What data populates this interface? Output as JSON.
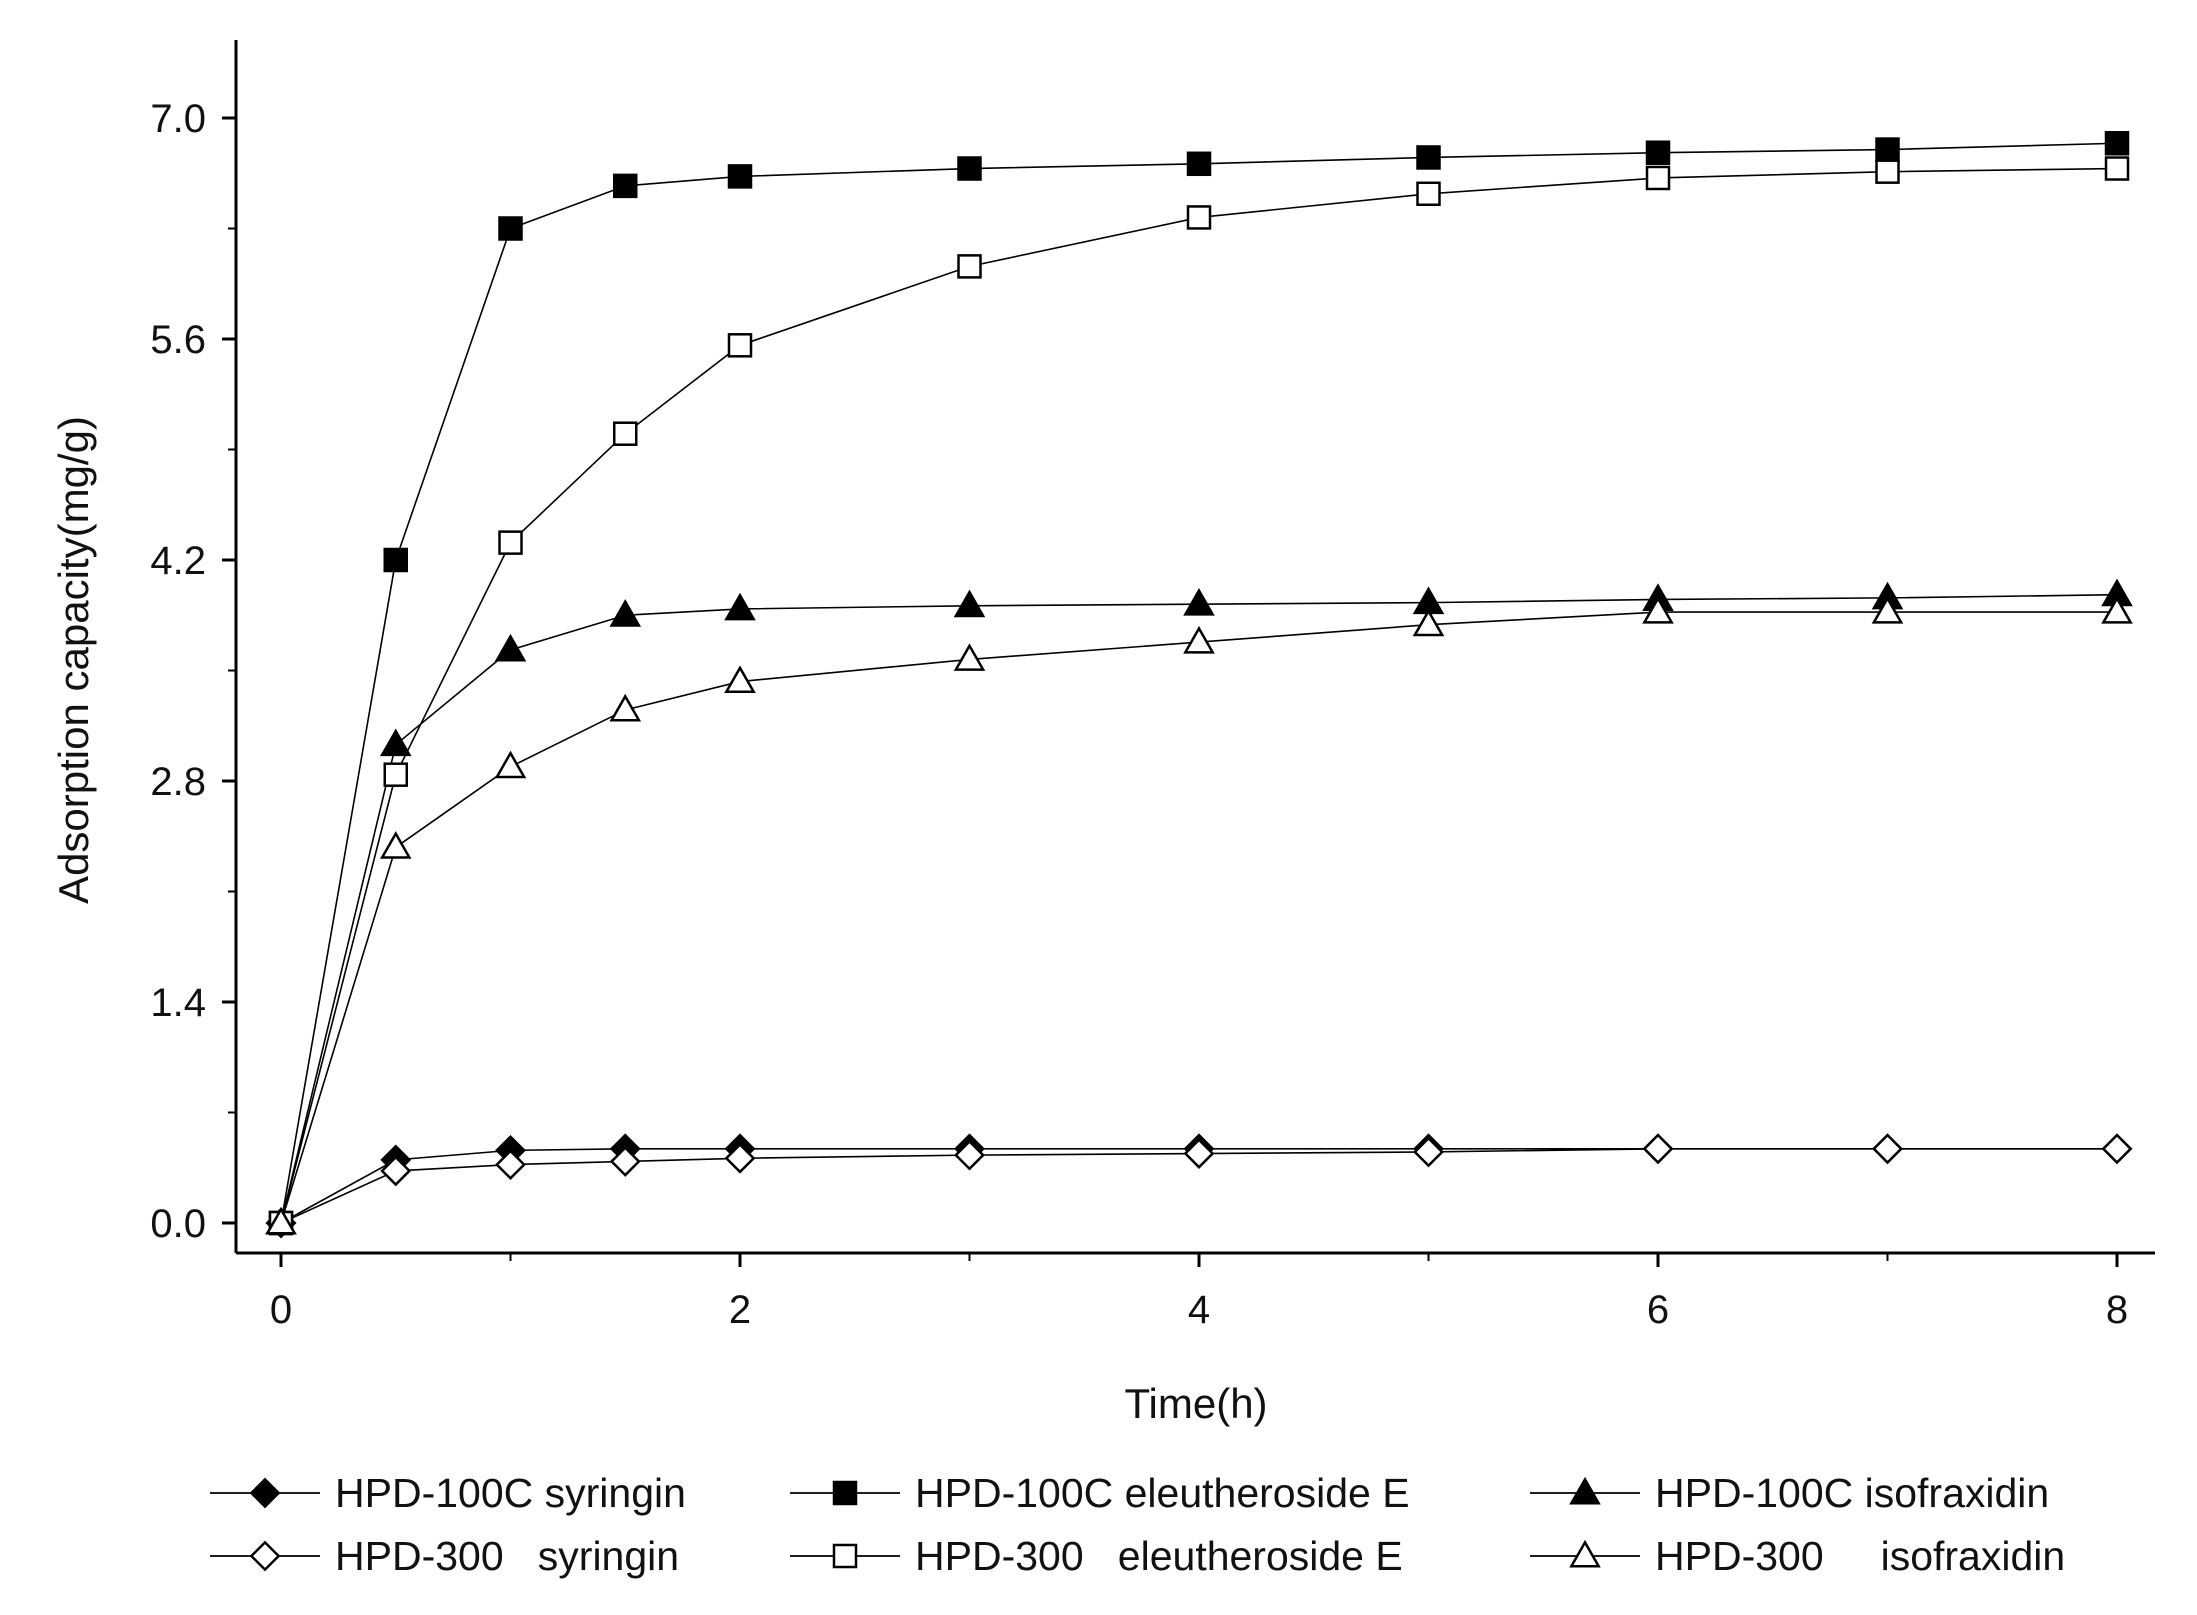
{
  "chart_data": {
    "type": "line",
    "title": "",
    "xlabel": "Time(h)",
    "ylabel": "Adsorption capacity(mg/g)",
    "xlim": [
      -0.25,
      8.2
    ],
    "ylim": [
      -0.2,
      7.5
    ],
    "x_ticks": [
      0,
      2,
      4,
      6,
      8
    ],
    "x_tick_labels": [
      "0",
      "2",
      "4",
      "6",
      "8"
    ],
    "y_ticks": [
      0.0,
      1.4,
      2.8,
      4.2,
      5.6,
      7.0
    ],
    "y_tick_labels": [
      "0.0",
      "1.4",
      "2.8",
      "4.2",
      "5.6",
      "7.0"
    ],
    "grid": false,
    "legend_position": "bottom",
    "x": [
      0,
      0.5,
      1,
      1.5,
      2,
      3,
      4,
      5,
      6,
      7,
      8
    ],
    "series": [
      {
        "name": "HPD-100C syringin",
        "marker": "diamond",
        "filled": true,
        "color": "#000000",
        "values": [
          0,
          0.4,
          0.46,
          0.47,
          0.47,
          0.47,
          0.47,
          0.47,
          0.47,
          0.47,
          0.47
        ]
      },
      {
        "name": "HPD-100C eleutheroside E",
        "marker": "square",
        "filled": true,
        "color": "#000000",
        "values": [
          0,
          4.2,
          6.3,
          6.57,
          6.63,
          6.68,
          6.71,
          6.75,
          6.78,
          6.8,
          6.84
        ]
      },
      {
        "name": "HPD-100C isofraxidin",
        "marker": "triangle",
        "filled": true,
        "color": "#000000",
        "values": [
          0,
          3.03,
          3.63,
          3.85,
          3.89,
          3.91,
          3.92,
          3.93,
          3.95,
          3.96,
          3.98
        ]
      },
      {
        "name": "HPD-300   syringin",
        "marker": "diamond",
        "filled": false,
        "color": "#000000",
        "values": [
          0,
          0.33,
          0.37,
          0.39,
          0.41,
          0.43,
          0.44,
          0.45,
          0.47,
          0.47,
          0.47
        ]
      },
      {
        "name": "HPD-300   eleutheroside E",
        "marker": "square",
        "filled": false,
        "color": "#000000",
        "values": [
          0,
          2.84,
          4.31,
          5.0,
          5.56,
          6.06,
          6.37,
          6.52,
          6.62,
          6.66,
          6.68
        ]
      },
      {
        "name": "HPD-300     isofraxidin",
        "marker": "triangle",
        "filled": false,
        "color": "#000000",
        "values": [
          0,
          2.38,
          2.89,
          3.25,
          3.43,
          3.57,
          3.68,
          3.79,
          3.87,
          3.87,
          3.87
        ]
      }
    ]
  }
}
